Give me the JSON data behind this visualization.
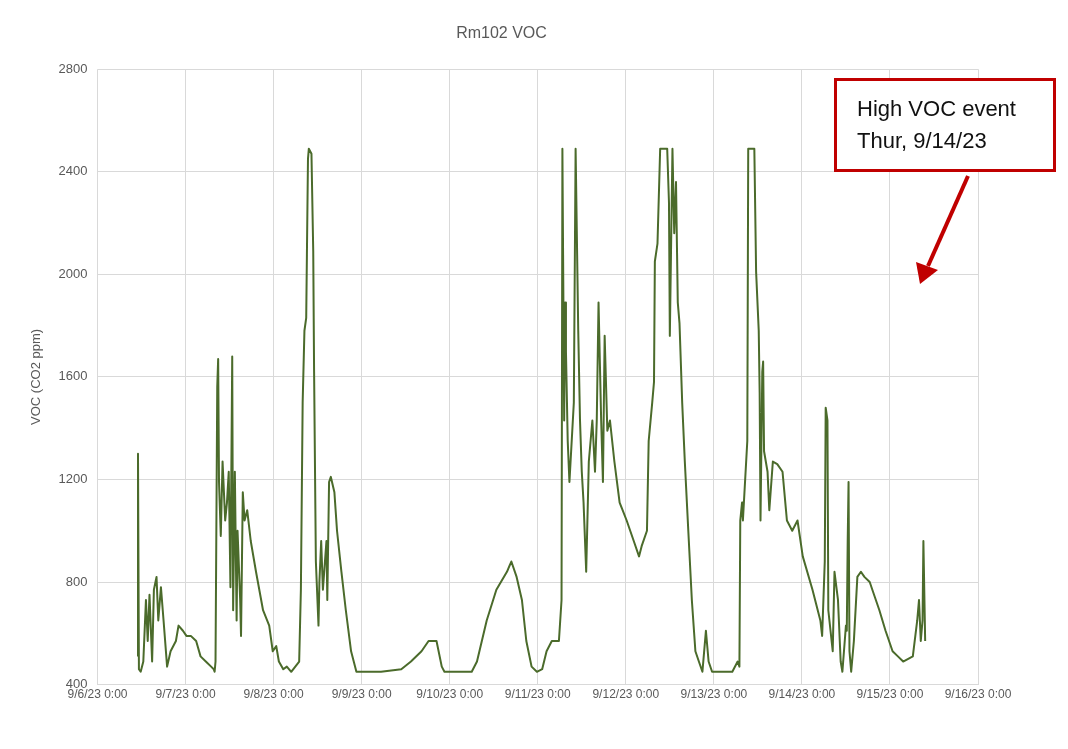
{
  "chart_data": {
    "type": "line",
    "title": "Rm102 VOC",
    "ylabel": "VOC (CO2 ppm)",
    "annotations": [
      "High VOC event\nThur, 9/14/23"
    ],
    "xlim": [
      "--09-06T00:00",
      "--09-16T00:00"
    ],
    "xticks": [
      {
        "value": "--09-06T00:00",
        "label": "9/6/23 0:00"
      },
      {
        "value": "--09-07T00:00",
        "label": "9/7/23 0:00"
      },
      {
        "value": "--09-08T00:00",
        "label": "9/8/23 0:00"
      },
      {
        "value": "--09-09T00:00",
        "label": "9/9/23 0:00"
      },
      {
        "value": "--09-10T00:00",
        "label": "9/10/23 0:00"
      },
      {
        "value": "--09-11T00:00",
        "label": "9/11/23 0:00"
      },
      {
        "value": "--09-12T00:00",
        "label": "9/12/23 0:00"
      },
      {
        "value": "--09-13T00:00",
        "label": "9/13/23 0:00"
      },
      {
        "value": "--09-14T00:00",
        "label": "9/14/23 0:00"
      },
      {
        "value": "--09-15T00:00",
        "label": "9/15/23 0:00"
      },
      {
        "value": "--09-16T00:00",
        "label": "9/16/23 0:00"
      }
    ],
    "ylim": [
      400,
      2800
    ],
    "yticks": [
      400,
      800,
      1200,
      1600,
      2000,
      2400,
      2800
    ],
    "grid": true,
    "legend": false,
    "marker": "none",
    "line_style": "solid",
    "series": [
      {
        "color": "#4b6b2b",
        "x": [
          "--09-06T11:02",
          "--09-06T11:02",
          "--09-06T11:17",
          "--09-06T11:46",
          "--09-06T12:29",
          "--09-06T13:12",
          "--09-06T13:41",
          "--09-06T14:10",
          "--09-06T14:53",
          "--09-06T15:22",
          "--09-06T16:05",
          "--09-06T16:34",
          "--09-06T17:17",
          "--09-06T18:00",
          "--09-06T18:58",
          "--09-06T19:55",
          "--09-06T21:22",
          "--09-06T22:05",
          "--09-06T23:17",
          "--09-07T00:14",
          "--09-07T01:26",
          "--09-07T02:53",
          "--09-07T04:05",
          "--09-07T05:31",
          "--09-07T06:58",
          "--09-07T07:41",
          "--09-07T07:55",
          "--09-07T08:10",
          "--09-07T08:38",
          "--09-07T08:53",
          "--09-07T09:07",
          "--09-07T09:36",
          "--09-07T10:05",
          "--09-07T10:48",
          "--09-07T11:17",
          "--09-07T11:46",
          "--09-07T12:14",
          "--09-07T12:43",
          "--09-07T12:58",
          "--09-07T13:26",
          "--09-07T13:55",
          "--09-07T14:10",
          "--09-07T14:53",
          "--09-07T15:07",
          "--09-07T15:36",
          "--09-07T16:05",
          "--09-07T16:48",
          "--09-07T17:46",
          "--09-07T19:12",
          "--09-07T21:07",
          "--09-07T22:48",
          "--09-07T23:46",
          "--09-08T00:43",
          "--09-08T01:26",
          "--09-08T02:38",
          "--09-08T03:36",
          "--09-08T04:48",
          "--09-08T06:58",
          "--09-08T07:26",
          "--09-08T07:55",
          "--09-08T08:24",
          "--09-08T08:53",
          "--09-08T09:22",
          "--09-08T09:36",
          "--09-08T10:19",
          "--09-08T10:48",
          "--09-08T11:02",
          "--09-08T11:31",
          "--09-08T12:14",
          "--09-08T12:29",
          "--09-08T12:58",
          "--09-08T13:26",
          "--09-08T14:24",
          "--09-08T14:38",
          "--09-08T15:07",
          "--09-08T15:36",
          "--09-08T16:34",
          "--09-08T17:17",
          "--09-08T18:29",
          "--09-08T19:41",
          "--09-08T21:07",
          "--09-08T22:34",
          "--09-09T05:17",
          "--09-09T10:48",
          "--09-09T13:26",
          "--09-09T16:19",
          "--09-09T18:14",
          "--09-09T20:24",
          "--09-09T21:50",
          "--09-09T22:34",
          "--09-10T06:00",
          "--09-10T07:26",
          "--09-10T10:05",
          "--09-10T12:43",
          "--09-10T15:36",
          "--09-10T16:48",
          "--09-10T18:14",
          "--09-10T19:41",
          "--09-10T20:53",
          "--09-10T22:19",
          "--09-10T23:46",
          "--09-11T01:12",
          "--09-11T02:24",
          "--09-11T03:50",
          "--09-11T05:46",
          "--09-11T06:29",
          "--09-11T06:43",
          "--09-11T07:12",
          "--09-11T07:26",
          "--09-11T07:41",
          "--09-11T08:10",
          "--09-11T08:38",
          "--09-11T09:50",
          "--09-11T10:19",
          "--09-11T11:02",
          "--09-11T11:31",
          "--09-11T12:00",
          "--09-11T12:29",
          "--09-11T13:12",
          "--09-11T13:55",
          "--09-11T14:53",
          "--09-11T15:36",
          "--09-11T16:05",
          "--09-11T16:34",
          "--09-11T17:17",
          "--09-11T17:46",
          "--09-11T18:14",
          "--09-11T18:58",
          "--09-11T19:41",
          "--09-11T20:53",
          "--09-11T22:19",
          "--09-12T00:14",
          "--09-12T02:10",
          "--09-12T03:36",
          "--09-12T04:19",
          "--09-12T05:46",
          "--09-12T06:14",
          "--09-12T07:12",
          "--09-12T07:41",
          "--09-12T07:55",
          "--09-12T08:38",
          "--09-12T09:22",
          "--09-12T11:17",
          "--09-12T11:46",
          "--09-12T12:00",
          "--09-12T12:43",
          "--09-12T13:12",
          "--09-12T13:41",
          "--09-12T14:10",
          "--09-12T14:38",
          "--09-12T15:22",
          "--09-12T16:05",
          "--09-12T17:02",
          "--09-12T18:00",
          "--09-12T18:58",
          "--09-12T19:55",
          "--09-12T20:53",
          "--09-12T21:50",
          "--09-12T22:34",
          "--09-12T23:31",
          "--09-13T05:02",
          "--09-13T06:29",
          "--09-13T06:58",
          "--09-13T07:12",
          "--09-13T07:41",
          "--09-13T07:55",
          "--09-13T09:07",
          "--09-13T09:22",
          "--09-13T11:02",
          "--09-13T11:31",
          "--09-13T12:14",
          "--09-13T12:29",
          "--09-13T12:43",
          "--09-13T13:12",
          "--09-13T13:26",
          "--09-13T13:41",
          "--09-13T14:38",
          "--09-13T15:07",
          "--09-13T16:05",
          "--09-13T17:17",
          "--09-13T18:43",
          "--09-13T19:55",
          "--09-13T21:22",
          "--09-13T22:48",
          "--09-14T00:14",
          "--09-14T02:53",
          "--09-14T05:02",
          "--09-14T05:31",
          "--09-14T06:14",
          "--09-14T06:29",
          "--09-14T06:58",
          "--09-14T07:12",
          "--09-14T08:24",
          "--09-14T08:53",
          "--09-14T09:50",
          "--09-14T10:34",
          "--09-14T11:02",
          "--09-14T12:00",
          "--09-14T12:14",
          "--09-14T12:29",
          "--09-14T12:43",
          "--09-14T12:58",
          "--09-14T13:26",
          "--09-14T14:10",
          "--09-14T15:07",
          "--09-14T16:05",
          "--09-14T17:02",
          "--09-14T18:29",
          "--09-14T19:12",
          "--09-14T21:07",
          "--09-14T22:48",
          "--09-15T00:43",
          "--09-15T02:10",
          "--09-15T03:36",
          "--09-15T06:14",
          "--09-15T07:26",
          "--09-15T07:55",
          "--09-15T08:24",
          "--09-15T08:53",
          "--09-15T09:07",
          "--09-15T09:36"
        ],
        "values": [
          510,
          1300,
          460,
          450,
          490,
          730,
          570,
          750,
          490,
          770,
          820,
          650,
          780,
          650,
          470,
          530,
          570,
          630,
          610,
          590,
          590,
          570,
          510,
          490,
          470,
          460,
          450,
          490,
          1560,
          1670,
          1190,
          980,
          1270,
          1040,
          1110,
          1230,
          780,
          1680,
          690,
          1230,
          650,
          1000,
          730,
          590,
          1150,
          1040,
          1080,
          960,
          840,
          690,
          630,
          530,
          550,
          490,
          460,
          470,
          450,
          490,
          770,
          1500,
          1780,
          1830,
          2450,
          2490,
          2470,
          2090,
          1620,
          880,
          630,
          800,
          960,
          770,
          960,
          730,
          1190,
          1210,
          1150,
          1000,
          840,
          690,
          530,
          450,
          450,
          460,
          490,
          530,
          570,
          570,
          470,
          450,
          450,
          490,
          650,
          770,
          840,
          880,
          820,
          730,
          570,
          470,
          450,
          460,
          530,
          570,
          570,
          730,
          2490,
          1430,
          1890,
          1700,
          1350,
          1190,
          1500,
          2490,
          1780,
          1430,
          1230,
          1110,
          840,
          1270,
          1430,
          1230,
          1430,
          1890,
          1430,
          1190,
          1760,
          1390,
          1430,
          1270,
          1110,
          1040,
          960,
          900,
          940,
          1000,
          1350,
          1500,
          1580,
          2050,
          2120,
          2490,
          2490,
          2280,
          1760,
          2490,
          2160,
          2360,
          1890,
          1810,
          1500,
          1270,
          1000,
          730,
          530,
          490,
          450,
          610,
          490,
          450,
          450,
          490,
          470,
          1040,
          1110,
          1040,
          1350,
          2490,
          2490,
          2010,
          1780,
          1540,
          1040,
          1620,
          1660,
          1310,
          1230,
          1080,
          1270,
          1260,
          1230,
          1040,
          1000,
          1040,
          900,
          770,
          650,
          590,
          880,
          1480,
          1430,
          690,
          530,
          840,
          730,
          490,
          450,
          630,
          610,
          960,
          1190,
          530,
          450,
          570,
          820,
          840,
          820,
          800,
          770,
          690,
          610,
          530,
          510,
          490,
          510,
          650,
          730,
          570,
          650,
          960,
          570
        ]
      }
    ]
  }
}
